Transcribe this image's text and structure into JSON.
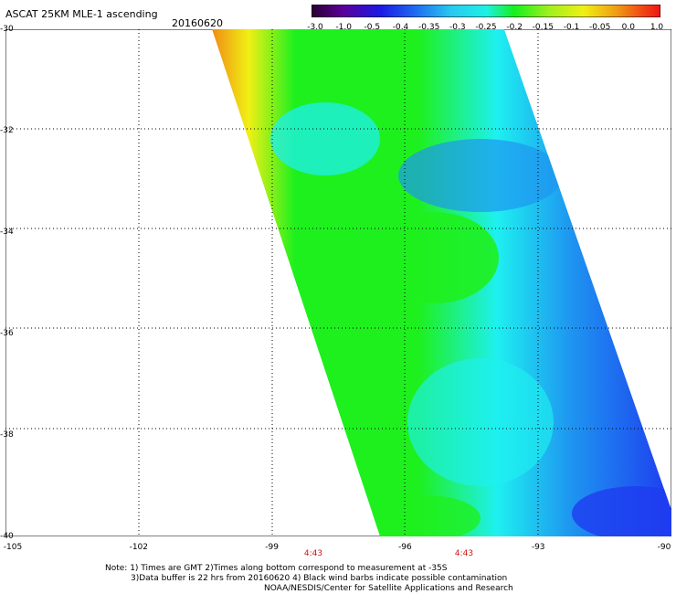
{
  "header": {
    "title": "ASCAT 25KM MLE-1 ascending",
    "date": "20160620"
  },
  "colorbar": {
    "ticks": [
      "-3.0",
      "-1.0",
      "-0.5",
      "-0.4",
      "-0.35",
      "-0.3",
      "-0.25",
      "-0.2",
      "-0.15",
      "-0.1",
      "-0.05",
      "0.0",
      "1.0"
    ],
    "stops": [
      "#2a0030",
      "#5a009a",
      "#1a1ae6",
      "#1e6ef0",
      "#28c8f0",
      "#1ef0e6",
      "#14f01e",
      "#9ef01e",
      "#f0f014",
      "#f0a014",
      "#f05014",
      "#f01414"
    ]
  },
  "map": {
    "lat_labels": [
      "-30",
      "-32",
      "-34",
      "-36",
      "-38",
      "-40"
    ],
    "lon_labels": [
      "-105",
      "-102",
      "-99",
      "-96",
      "-93",
      "-90"
    ],
    "time_labels": [
      "4:43",
      "4:43"
    ],
    "swath_colors": {
      "edge_orange": "#f08c14",
      "yellow": "#f0f014",
      "green": "#1ef01e",
      "cyan": "#1ef0f0",
      "blue": "#1e78f0"
    }
  },
  "footer": {
    "line1": "Note: 1) Times are GMT 2)Times along bottom correspond to measurement at -35S",
    "line2": "3)Data buffer is 22 hrs from 20160620 4) Black wind barbs indicate possible contamination",
    "line3": "NOAA/NESDIS/Center for Satellite Applications and Research"
  }
}
